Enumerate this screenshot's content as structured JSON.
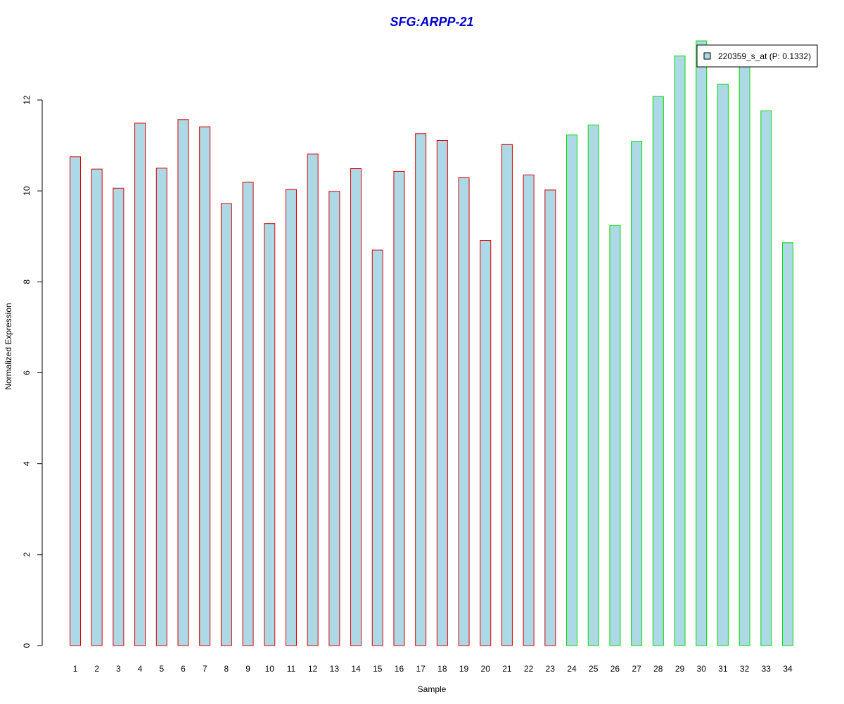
{
  "chart_data": {
    "type": "bar",
    "title": "SFG:ARPP-21",
    "xlabel": "Sample",
    "ylabel": "Normalized Expression",
    "ylim": [
      0,
      13.4
    ],
    "yticks": [
      0,
      2,
      4,
      6,
      8,
      10,
      12
    ],
    "categories": [
      "1",
      "2",
      "3",
      "4",
      "5",
      "6",
      "7",
      "8",
      "9",
      "10",
      "11",
      "12",
      "13",
      "14",
      "15",
      "16",
      "17",
      "18",
      "19",
      "20",
      "21",
      "22",
      "23",
      "24",
      "25",
      "26",
      "27",
      "28",
      "29",
      "30",
      "31",
      "32",
      "33",
      "34"
    ],
    "values": [
      10.75,
      10.48,
      10.06,
      11.49,
      10.5,
      11.57,
      11.41,
      9.72,
      10.19,
      9.28,
      10.03,
      10.81,
      9.99,
      10.49,
      8.7,
      10.43,
      11.26,
      11.11,
      10.29,
      8.91,
      11.02,
      10.35,
      10.02,
      11.23,
      11.45,
      9.24,
      11.09,
      12.08,
      12.97,
      13.3,
      12.35,
      12.83,
      11.76,
      8.86
    ],
    "groups": [
      1,
      1,
      1,
      1,
      1,
      1,
      1,
      1,
      1,
      1,
      1,
      1,
      1,
      1,
      1,
      1,
      1,
      1,
      1,
      1,
      1,
      1,
      1,
      2,
      2,
      2,
      2,
      2,
      2,
      2,
      2,
      2,
      2,
      2
    ],
    "colors": {
      "fill": "#add8e6",
      "group1_border": "#dd0000",
      "group2_border": "#00dd00",
      "title": "#0000cc"
    },
    "legend": {
      "label": "220359_s_at (P: 0.1332)",
      "placement": "top-right"
    },
    "grid": false
  }
}
